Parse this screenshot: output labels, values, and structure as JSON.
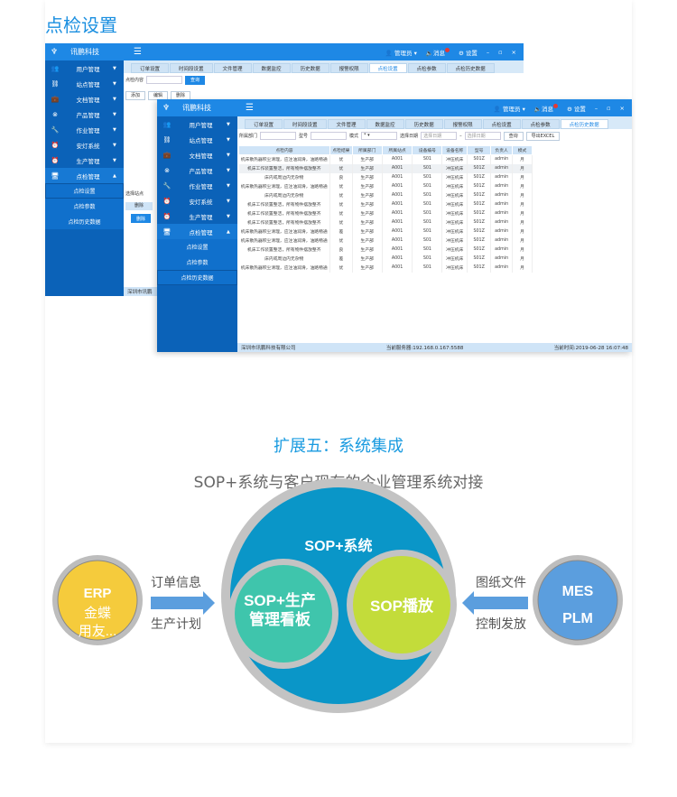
{
  "page_title": "点检设置",
  "app": {
    "brand": "讯鹏科技",
    "user": "管理员",
    "messages": "消息",
    "settings": "设置"
  },
  "sidebar": {
    "items": [
      "用户管理",
      "站点管理",
      "文档管理",
      "产品管理",
      "作业管理",
      "安灯系统",
      "生产管理",
      "点检管理"
    ],
    "sub": [
      "点检设置",
      "点检参数",
      "点检历史数据"
    ]
  },
  "tabs": [
    "订单设置",
    "时间段设置",
    "文件管理",
    "数据监控",
    "历史数据",
    "报警权限",
    "点检设置",
    "点检参数",
    "点检历史数据"
  ],
  "back": {
    "filter_label": "点检内容",
    "query": "查询",
    "add": "添加",
    "edit": "编辑",
    "delete": "删除",
    "station": "选择站点",
    "status": "深圳市讯鹏"
  },
  "front": {
    "filters": {
      "dept": "所属部门",
      "model": "型号",
      "mode": "模式",
      "mode_value": "*",
      "date": "选择日期",
      "date_ph": "选择日期",
      "query": "查询",
      "export": "导出EXCEL"
    },
    "columns": [
      "点检内容",
      "点检结果",
      "所属部门",
      "所属站点",
      "设备编号",
      "设备名称",
      "型号",
      "负责人",
      "模式"
    ],
    "rows": [
      [
        "机床散热器积尘清理，应注油润滑，油路畅通",
        "优",
        "生产部",
        "A001",
        "S01",
        "冲压机床",
        "S01Z",
        "admin",
        "月"
      ],
      [
        "机床工作装置整洁，所有物件摆放整齐",
        "优",
        "生产部",
        "A001",
        "S01",
        "冲压机床",
        "S01Z",
        "admin",
        "月"
      ],
      [
        "床内或周边内无杂物",
        "良",
        "生产部",
        "A001",
        "S01",
        "冲压机床",
        "S01Z",
        "admin",
        "月"
      ],
      [
        "机床散热器积尘清理，应注油润滑，油路畅通",
        "优",
        "生产部",
        "A001",
        "S01",
        "冲压机床",
        "S01Z",
        "admin",
        "月"
      ],
      [
        "床内或周边内无杂物",
        "优",
        "生产部",
        "A001",
        "S01",
        "冲压机床",
        "S01Z",
        "admin",
        "月"
      ],
      [
        "机床工作装置整洁，所有物件摆放整齐",
        "优",
        "生产部",
        "A001",
        "S01",
        "冲压机床",
        "S01Z",
        "admin",
        "月"
      ],
      [
        "机床工作装置整洁，所有物件摆放整齐",
        "优",
        "生产部",
        "A001",
        "S01",
        "冲压机床",
        "S01Z",
        "admin",
        "月"
      ],
      [
        "机床工作装置整洁，所有物件摆放整齐",
        "优",
        "生产部",
        "A001",
        "S01",
        "冲压机床",
        "S01Z",
        "admin",
        "月"
      ],
      [
        "机床散热器积尘清理，应注油润滑，油路畅通",
        "差",
        "生产部",
        "A001",
        "S01",
        "冲压机床",
        "S01Z",
        "admin",
        "月"
      ],
      [
        "机床散热器积尘清理，应注油润滑，油路畅通",
        "优",
        "生产部",
        "A001",
        "S01",
        "冲压机床",
        "S01Z",
        "admin",
        "月"
      ],
      [
        "机床工作装置整洁，所有物件摆放整齐",
        "良",
        "生产部",
        "A001",
        "S01",
        "冲压机床",
        "S01Z",
        "admin",
        "月"
      ],
      [
        "床内或周边内无杂物",
        "差",
        "生产部",
        "A001",
        "S01",
        "冲压机床",
        "S01Z",
        "admin",
        "月"
      ],
      [
        "机床散热器积尘清理，应注油润滑，油路畅通",
        "优",
        "生产部",
        "A001",
        "S01",
        "冲压机床",
        "S01Z",
        "admin",
        "月"
      ]
    ],
    "status": {
      "company": "深圳市讯鹏科技有限公司",
      "server": "当前服务器:192.168.0.167:5588",
      "time": "当前时间:2019-06-28 16:07:48"
    }
  },
  "section": {
    "title": "扩展五：系统集成",
    "subtitle": "SOP+系统与客户现有的企业管理系统对接"
  },
  "diagram": {
    "erp": [
      "ERP",
      "金蝶",
      "用友..."
    ],
    "left_labels": [
      "订单信息",
      "生产计划"
    ],
    "center": "SOP+系统",
    "board": [
      "SOP+生产",
      "管理看板"
    ],
    "play": "SOP播放",
    "right_labels": [
      "图纸文件",
      "控制发放"
    ],
    "mes": [
      "MES",
      "PLM"
    ],
    "colors": {
      "erp": "#f5cb3c",
      "center": "#0a96c8",
      "board": "#3fc5ac",
      "play": "#c3dc3a",
      "mes": "#5b9ede",
      "arrow": "#5b9ede"
    }
  }
}
